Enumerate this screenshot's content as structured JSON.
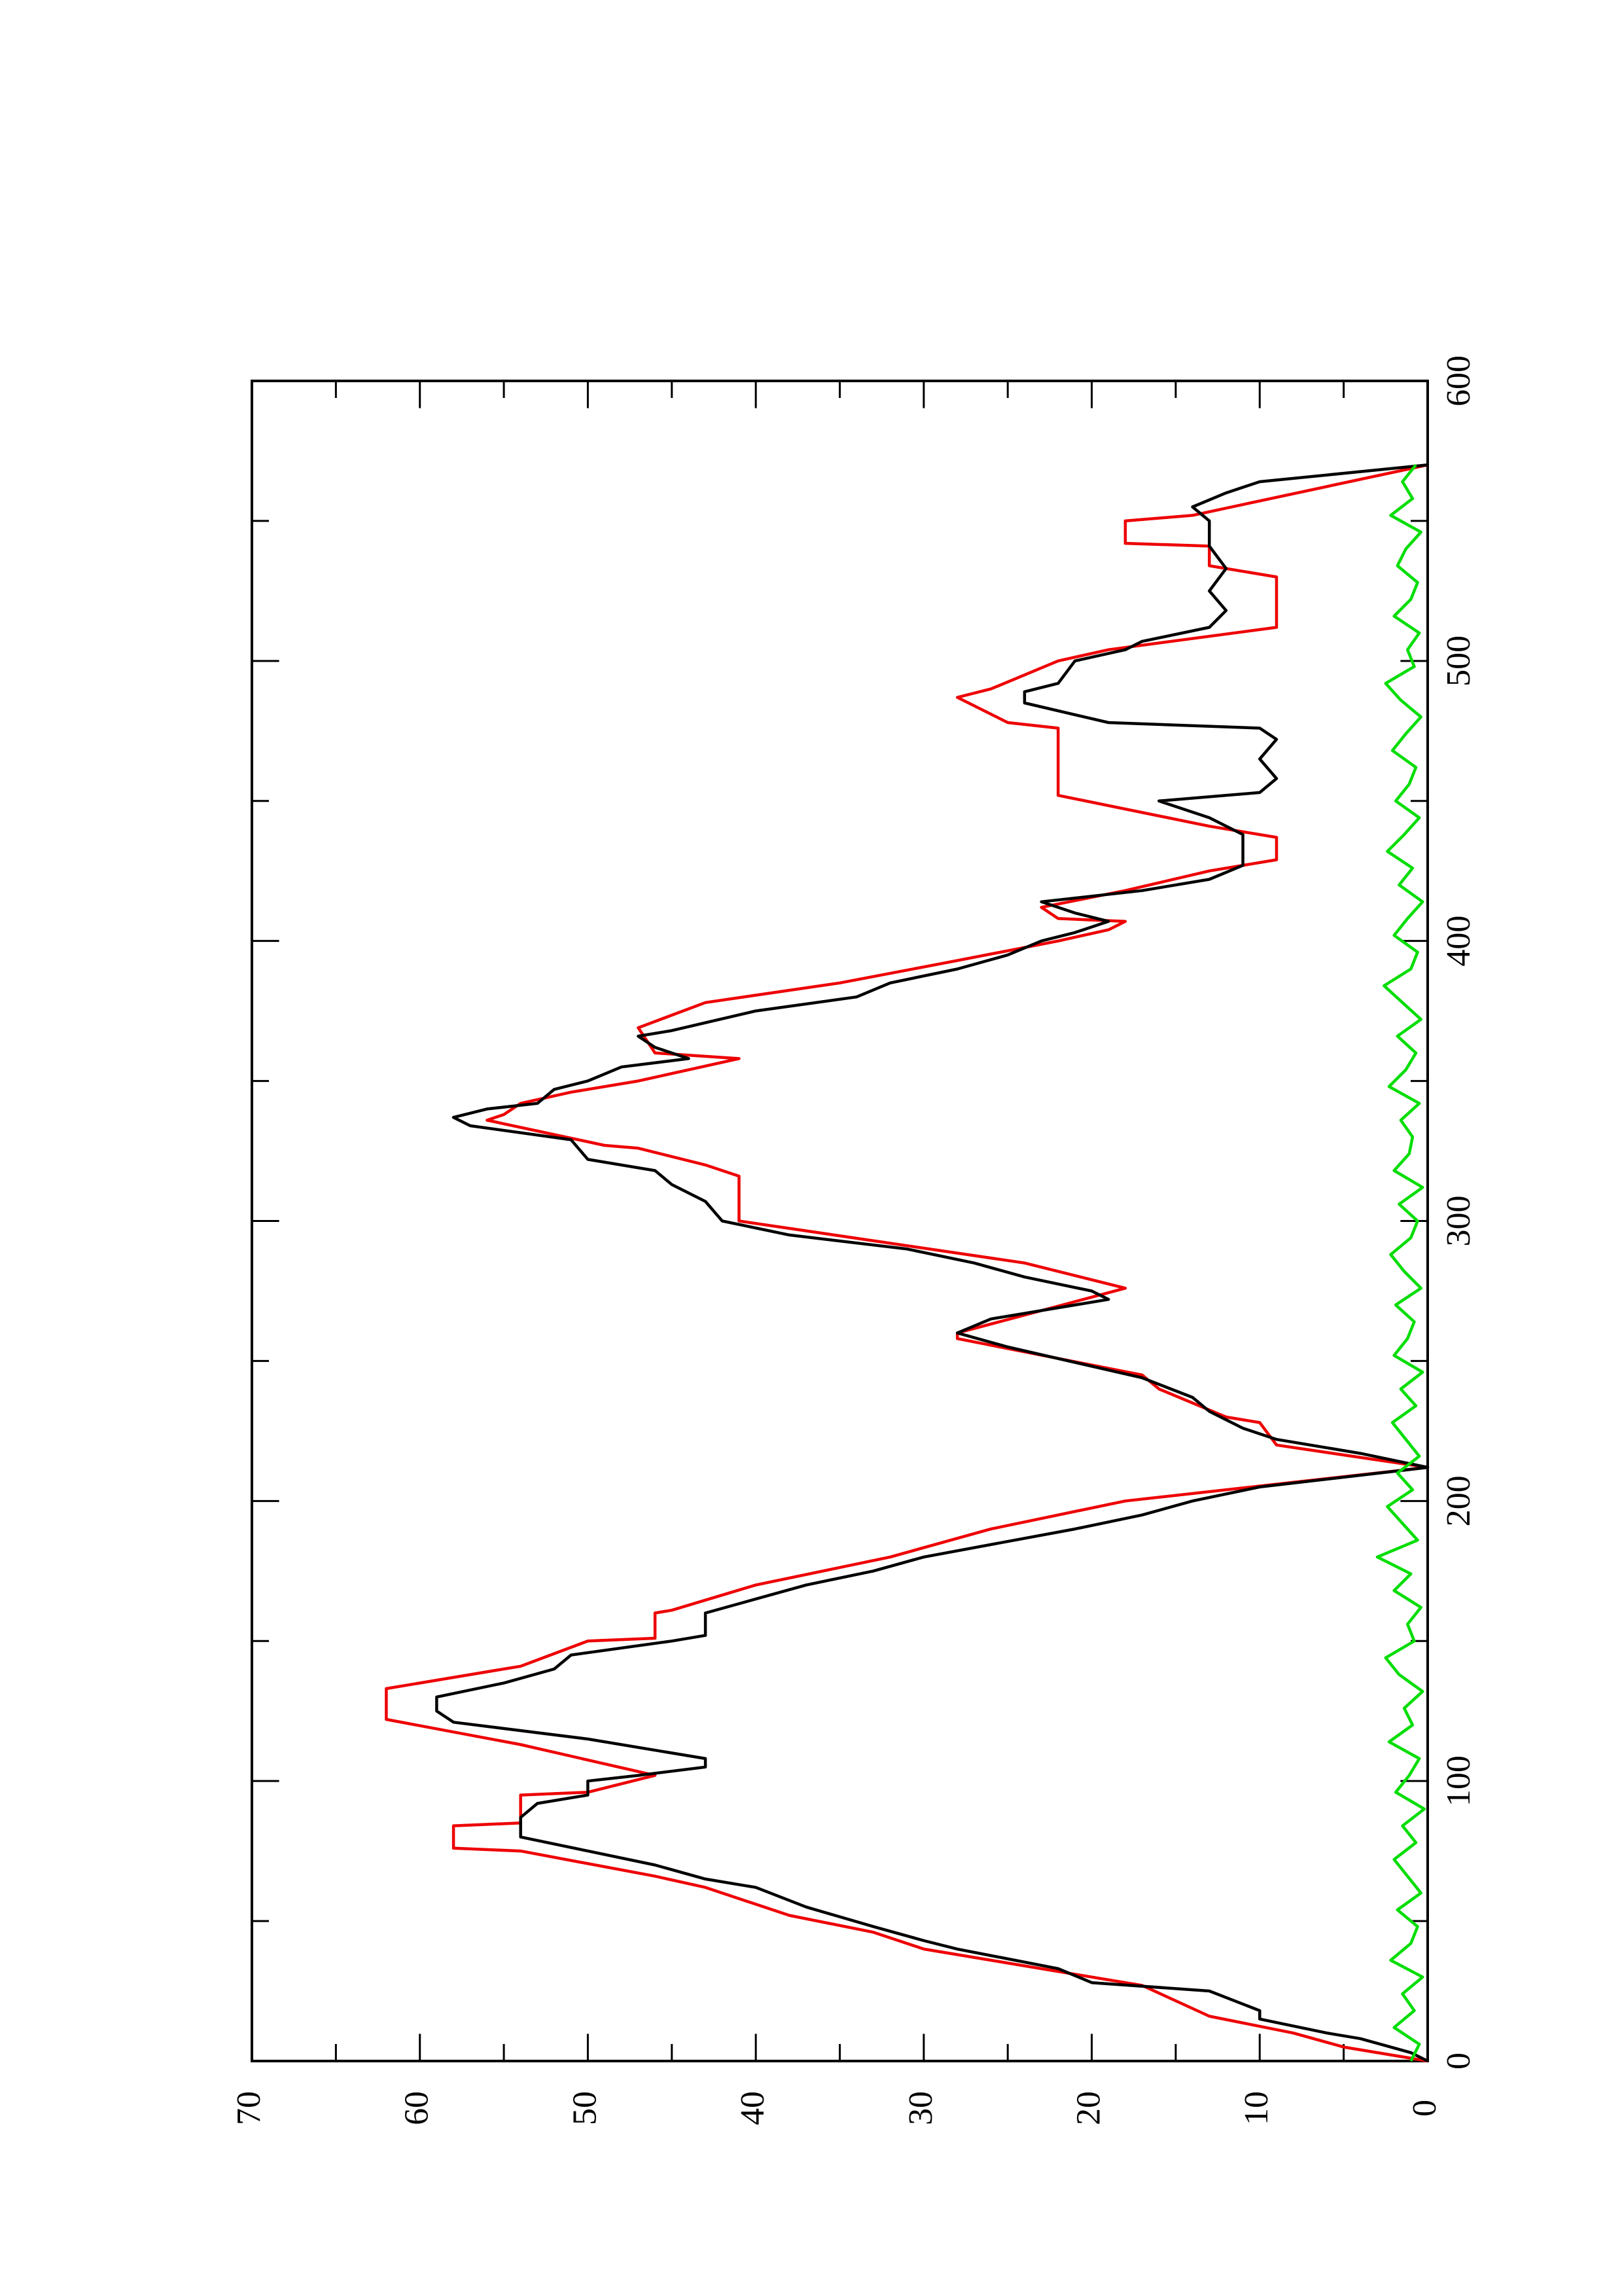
{
  "chart_data": {
    "type": "line",
    "xlim": [
      0,
      600
    ],
    "xticks": [
      0,
      100,
      200,
      300,
      400,
      500,
      600
    ],
    "xminor_ticks": [
      50,
      150,
      250,
      350,
      450,
      550
    ],
    "ylim": [
      0,
      70
    ],
    "yticks": [
      0,
      10,
      20,
      30,
      40,
      50,
      60,
      70
    ],
    "yminor_ticks": [
      5,
      15,
      25,
      35,
      45,
      55,
      65
    ],
    "series": [
      {
        "color": "#ee0000",
        "x": [
          0,
          5,
          10,
          16,
          27,
          30,
          36,
          40,
          46,
          52,
          56,
          62,
          66,
          75,
          76,
          84,
          85,
          95,
          96,
          102,
          113,
          122,
          133,
          140,
          141,
          150,
          151,
          160,
          161,
          170,
          180,
          190,
          200,
          212,
          220,
          228,
          230,
          240,
          245,
          258,
          260,
          276,
          285,
          300,
          316,
          320,
          326,
          327,
          336,
          338,
          342,
          346,
          350,
          358,
          360,
          369,
          378,
          385,
          393,
          400,
          404,
          407,
          408,
          412,
          418,
          425,
          429,
          437,
          441,
          452,
          476,
          478,
          487,
          490,
          500,
          504,
          512,
          530,
          534,
          541,
          542,
          550,
          552,
          570
        ],
        "values": [
          0,
          5,
          8,
          13,
          17,
          20,
          26,
          30,
          33,
          38,
          40,
          43,
          46,
          54,
          58,
          58,
          54,
          54,
          50,
          46,
          54,
          62,
          62,
          55,
          54,
          50,
          46,
          46,
          45,
          40,
          32,
          26,
          18,
          0,
          9,
          10,
          12,
          16,
          17,
          28,
          28,
          18,
          24,
          41,
          41,
          43,
          47,
          49,
          56,
          55,
          54,
          51,
          47,
          41,
          46,
          47,
          43,
          35,
          28,
          22,
          19,
          18,
          22,
          23,
          18,
          13,
          9,
          9,
          13,
          22,
          22,
          25,
          28,
          26,
          22,
          19,
          9,
          9,
          13,
          13,
          18,
          18,
          14,
          0
        ]
      },
      {
        "color": "#000000",
        "x": [
          0,
          3,
          8,
          10,
          15,
          18,
          25,
          28,
          33,
          40,
          43,
          48,
          55,
          62,
          65,
          70,
          75,
          80,
          87,
          92,
          95,
          100,
          102,
          105,
          108,
          115,
          121,
          125,
          130,
          135,
          140,
          145,
          150,
          152,
          160,
          165,
          170,
          175,
          180,
          190,
          195,
          200,
          205,
          212,
          217,
          222,
          226,
          232,
          237,
          244,
          255,
          260,
          265,
          272,
          275,
          280,
          285,
          290,
          295,
          300,
          307,
          313,
          318,
          322,
          329,
          334,
          337,
          340,
          342,
          347,
          350,
          355,
          358,
          362,
          366,
          368,
          375,
          380,
          385,
          390,
          395,
          400,
          403,
          407,
          410,
          414,
          418,
          422,
          427,
          432,
          438,
          444,
          450,
          453,
          458,
          465,
          472,
          476,
          478,
          485,
          489,
          492,
          500,
          504,
          507,
          512,
          518,
          525,
          533,
          541,
          550,
          555,
          560,
          564,
          570
        ],
        "values": [
          0,
          1,
          4,
          6,
          10,
          10,
          13,
          20,
          22,
          28,
          30,
          33,
          37,
          40,
          43,
          46,
          50,
          54,
          54,
          53,
          50,
          50,
          47,
          43,
          43,
          50,
          58,
          59,
          59,
          55,
          52,
          51,
          45,
          43,
          43,
          40,
          37,
          33,
          30,
          21,
          17,
          14,
          10,
          0,
          4,
          9,
          11,
          13,
          14,
          17,
          25,
          28,
          26,
          19,
          20,
          24,
          27,
          31,
          38,
          42,
          43,
          45,
          46,
          50,
          51,
          57,
          58,
          56,
          53,
          52,
          50,
          48,
          44,
          46,
          47,
          45,
          40,
          34,
          32,
          28,
          25,
          23,
          21,
          19,
          21,
          23,
          17,
          13,
          11,
          11,
          11,
          13,
          16,
          10,
          9,
          10,
          9,
          10,
          19,
          24,
          24,
          22,
          21,
          18,
          17,
          13,
          12,
          13,
          12,
          13,
          13,
          14,
          12,
          10,
          0
        ]
      },
      {
        "color": "#00dd00",
        "x": [
          0,
          6,
          12,
          18,
          24,
          30,
          36,
          42,
          48,
          54,
          60,
          66,
          72,
          78,
          84,
          90,
          96,
          102,
          108,
          114,
          120,
          126,
          132,
          138,
          144,
          150,
          156,
          162,
          168,
          174,
          180,
          186,
          192,
          198,
          204,
          210,
          216,
          222,
          228,
          234,
          240,
          246,
          252,
          258,
          264,
          270,
          276,
          282,
          288,
          294,
          300,
          306,
          312,
          318,
          324,
          330,
          336,
          342,
          348,
          354,
          360,
          366,
          372,
          378,
          384,
          390,
          396,
          402,
          408,
          414,
          420,
          426,
          432,
          438,
          444,
          450,
          456,
          462,
          468,
          474,
          480,
          486,
          492,
          498,
          504,
          510,
          516,
          522,
          528,
          534,
          540,
          546,
          552,
          558,
          564,
          570
        ],
        "values": [
          1,
          0.5,
          2,
          0.8,
          1.5,
          0.3,
          2.2,
          1,
          0.6,
          1.8,
          0.4,
          1.2,
          2,
          0.7,
          1.5,
          0.2,
          1.9,
          1.1,
          0.5,
          2.3,
          0.9,
          1.4,
          0.3,
          1.7,
          2.5,
          0.8,
          1.2,
          0.4,
          2,
          1,
          3,
          0.6,
          1.5,
          2.4,
          0.9,
          1.8,
          0.5,
          1.3,
          2.1,
          0.7,
          1.6,
          0.3,
          2,
          1.2,
          0.8,
          1.9,
          0.4,
          1.4,
          2.2,
          1,
          0.6,
          1.7,
          0.3,
          2,
          1.1,
          0.9,
          1.6,
          0.5,
          2.3,
          1.3,
          0.7,
          1.8,
          0.4,
          1.5,
          2.6,
          1,
          0.6,
          2,
          1.2,
          0.3,
          1.7,
          0.9,
          2.4,
          1.4,
          0.5,
          1.9,
          1.1,
          0.7,
          2.1,
          1.3,
          0.4,
          1.6,
          2.5,
          0.8,
          1.2,
          0.5,
          2,
          1,
          0.6,
          1.8,
          1.3,
          0.4,
          2.2,
          0.9,
          1.5,
          0.7
        ]
      }
    ]
  }
}
